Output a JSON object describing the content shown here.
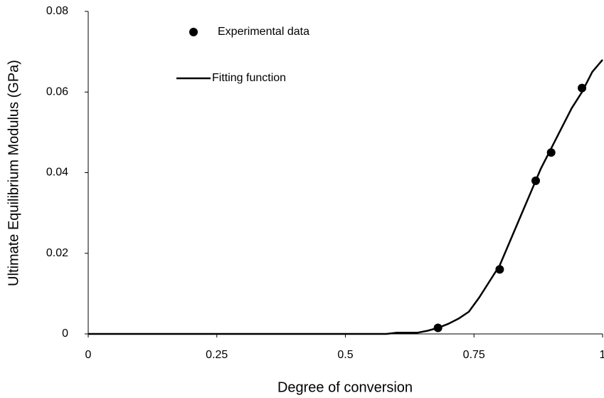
{
  "chart_data": {
    "type": "line",
    "x_label": "Degree of conversion",
    "y_label": "Ultimate Equilibrium Modulus (GPa)",
    "xlim": [
      0,
      1
    ],
    "xticks": [
      0,
      0.25,
      0.5,
      0.75,
      1
    ],
    "ylim": [
      0,
      0.08
    ],
    "yticks": [
      0,
      0.02,
      0.04,
      0.06,
      0.08
    ],
    "grid": false,
    "legend": "upper left",
    "series": [
      {
        "name": "Experimental data",
        "type": "scatter",
        "color": "#000000",
        "x": [
          0.68,
          0.8,
          0.87,
          0.9,
          0.96
        ],
        "values": [
          0.0015,
          0.016,
          0.038,
          0.045,
          0.061
        ]
      },
      {
        "name": "Fitting function",
        "type": "line",
        "color": "#000000",
        "x": [
          0,
          0.1,
          0.2,
          0.3,
          0.4,
          0.5,
          0.58,
          0.6,
          0.64,
          0.66,
          0.68,
          0.7,
          0.72,
          0.74,
          0.76,
          0.78,
          0.8,
          0.82,
          0.84,
          0.86,
          0.88,
          0.9,
          0.92,
          0.94,
          0.96,
          0.98,
          1
        ],
        "values": [
          0,
          0,
          0,
          0,
          0,
          0,
          0,
          0.0003,
          0.0003,
          0.0008,
          0.0015,
          0.0025,
          0.0038,
          0.0055,
          0.009,
          0.013,
          0.017,
          0.023,
          0.029,
          0.035,
          0.041,
          0.046,
          0.051,
          0.056,
          0.06,
          0.065,
          0.068
        ]
      }
    ]
  }
}
